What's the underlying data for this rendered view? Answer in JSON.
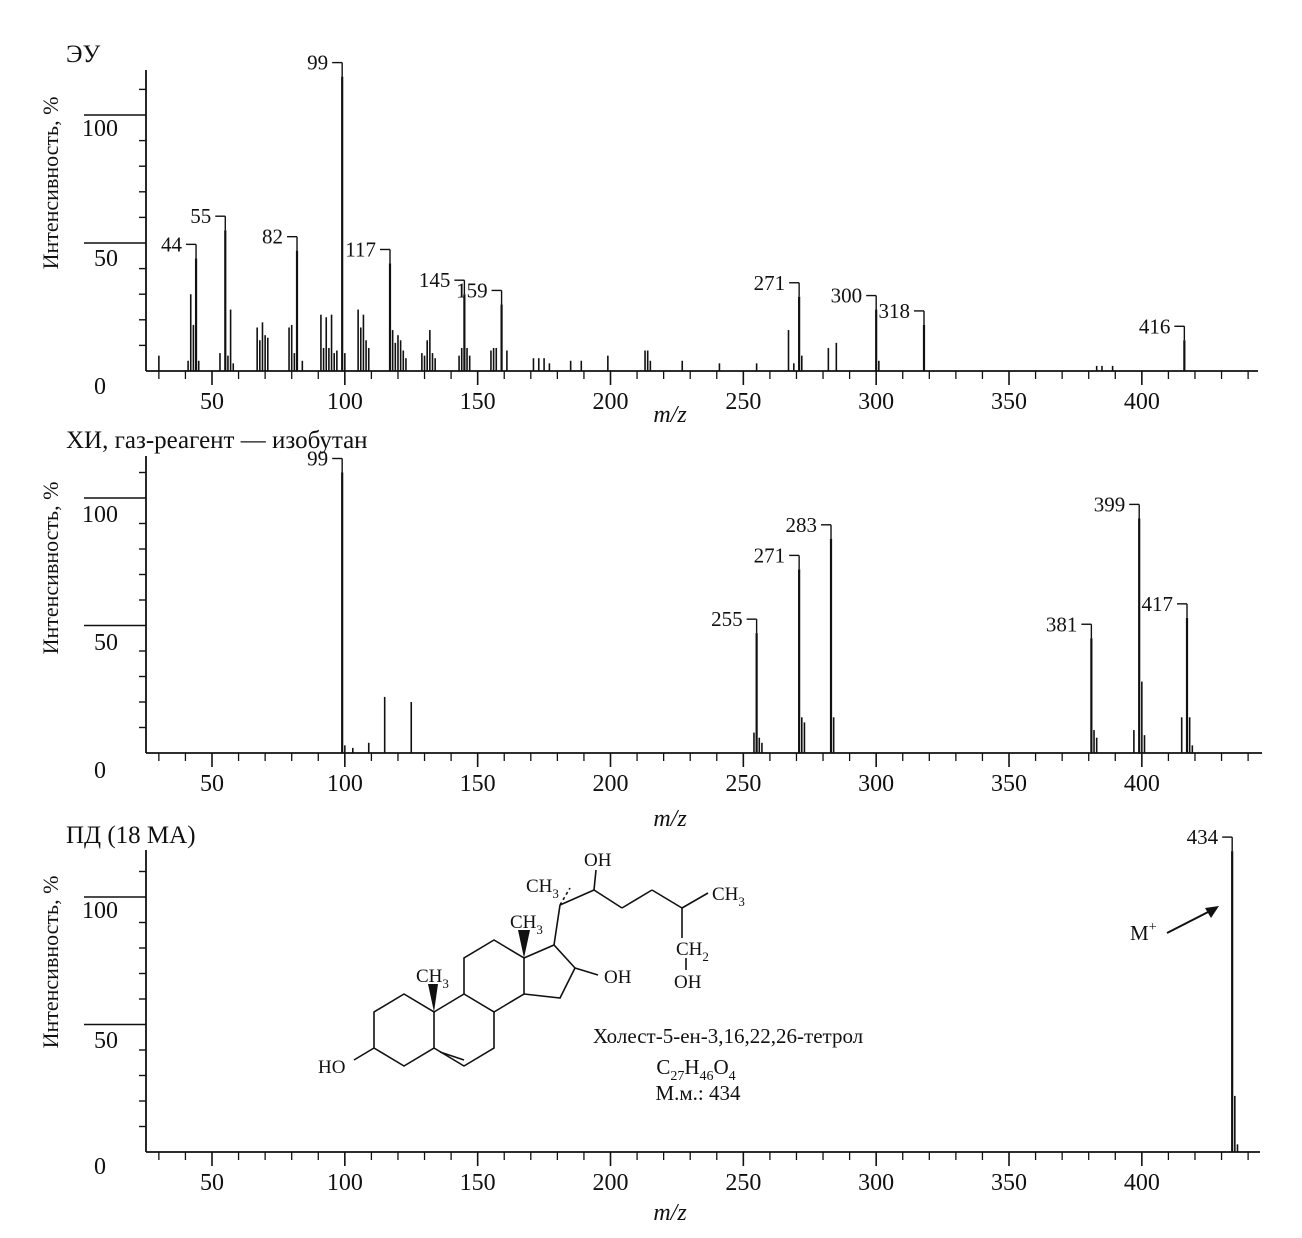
{
  "chart_data": [
    {
      "type": "bar",
      "title": "ЭУ",
      "xlabel": "m/z",
      "ylabel": "Интенсивность, %",
      "xlim": [
        25,
        440
      ],
      "ylim": [
        0,
        120
      ],
      "xticks": [
        "50",
        "100",
        "150",
        "200",
        "250",
        "300",
        "350",
        "400"
      ],
      "yticks": [
        "0",
        "50",
        "100"
      ],
      "peaks": [
        {
          "x": 30,
          "y": 6
        },
        {
          "x": 41,
          "y": 4
        },
        {
          "x": 42,
          "y": 30
        },
        {
          "x": 43,
          "y": 18
        },
        {
          "x": 44,
          "y": 44,
          "label": "44"
        },
        {
          "x": 45,
          "y": 4
        },
        {
          "x": 53,
          "y": 7
        },
        {
          "x": 55,
          "y": 55,
          "label": "55"
        },
        {
          "x": 56,
          "y": 6
        },
        {
          "x": 57,
          "y": 24
        },
        {
          "x": 58,
          "y": 3
        },
        {
          "x": 67,
          "y": 17
        },
        {
          "x": 68,
          "y": 12
        },
        {
          "x": 69,
          "y": 19
        },
        {
          "x": 70,
          "y": 14
        },
        {
          "x": 71,
          "y": 13
        },
        {
          "x": 79,
          "y": 17
        },
        {
          "x": 80,
          "y": 18
        },
        {
          "x": 81,
          "y": 7
        },
        {
          "x": 82,
          "y": 47,
          "label": "82"
        },
        {
          "x": 84,
          "y": 4
        },
        {
          "x": 91,
          "y": 22
        },
        {
          "x": 92,
          "y": 9
        },
        {
          "x": 93,
          "y": 21
        },
        {
          "x": 94,
          "y": 9
        },
        {
          "x": 95,
          "y": 22
        },
        {
          "x": 96,
          "y": 7
        },
        {
          "x": 97,
          "y": 8
        },
        {
          "x": 99,
          "y": 115,
          "label": "99"
        },
        {
          "x": 100,
          "y": 7
        },
        {
          "x": 105,
          "y": 24
        },
        {
          "x": 106,
          "y": 17
        },
        {
          "x": 107,
          "y": 22
        },
        {
          "x": 108,
          "y": 12
        },
        {
          "x": 109,
          "y": 9
        },
        {
          "x": 117,
          "y": 42,
          "label": "117"
        },
        {
          "x": 118,
          "y": 16
        },
        {
          "x": 119,
          "y": 11
        },
        {
          "x": 120,
          "y": 14
        },
        {
          "x": 121,
          "y": 12
        },
        {
          "x": 122,
          "y": 8
        },
        {
          "x": 123,
          "y": 5
        },
        {
          "x": 129,
          "y": 7
        },
        {
          "x": 130,
          "y": 6
        },
        {
          "x": 131,
          "y": 12
        },
        {
          "x": 132,
          "y": 16
        },
        {
          "x": 133,
          "y": 7
        },
        {
          "x": 134,
          "y": 5
        },
        {
          "x": 143,
          "y": 6
        },
        {
          "x": 144,
          "y": 9
        },
        {
          "x": 145,
          "y": 30,
          "label": "145"
        },
        {
          "x": 146,
          "y": 9
        },
        {
          "x": 147,
          "y": 6
        },
        {
          "x": 155,
          "y": 8
        },
        {
          "x": 156,
          "y": 9
        },
        {
          "x": 157,
          "y": 9
        },
        {
          "x": 159,
          "y": 26,
          "label": "159"
        },
        {
          "x": 161,
          "y": 8
        },
        {
          "x": 171,
          "y": 5
        },
        {
          "x": 173,
          "y": 5
        },
        {
          "x": 175,
          "y": 5
        },
        {
          "x": 177,
          "y": 3
        },
        {
          "x": 185,
          "y": 4
        },
        {
          "x": 189,
          "y": 4
        },
        {
          "x": 199,
          "y": 6
        },
        {
          "x": 213,
          "y": 8
        },
        {
          "x": 214,
          "y": 8
        },
        {
          "x": 215,
          "y": 4
        },
        {
          "x": 227,
          "y": 4
        },
        {
          "x": 241,
          "y": 3
        },
        {
          "x": 255,
          "y": 3
        },
        {
          "x": 267,
          "y": 16
        },
        {
          "x": 269,
          "y": 3
        },
        {
          "x": 271,
          "y": 29,
          "label": "271"
        },
        {
          "x": 272,
          "y": 6
        },
        {
          "x": 282,
          "y": 9
        },
        {
          "x": 285,
          "y": 11
        },
        {
          "x": 300,
          "y": 24,
          "label": "300"
        },
        {
          "x": 301,
          "y": 4
        },
        {
          "x": 318,
          "y": 18,
          "label": "318"
        },
        {
          "x": 383,
          "y": 2
        },
        {
          "x": 385,
          "y": 2
        },
        {
          "x": 389,
          "y": 2
        },
        {
          "x": 416,
          "y": 12,
          "label": "416"
        }
      ]
    },
    {
      "type": "bar",
      "title": "ХИ, газ-реагент — изобутан",
      "xlabel": "m/z",
      "ylabel": "Интенсивность, %",
      "xlim": [
        25,
        440
      ],
      "ylim": [
        0,
        120
      ],
      "xticks": [
        "50",
        "100",
        "150",
        "200",
        "250",
        "300",
        "350",
        "400"
      ],
      "yticks": [
        "0",
        "50",
        "100"
      ],
      "peaks": [
        {
          "x": 99,
          "y": 110,
          "label": "99"
        },
        {
          "x": 100,
          "y": 3
        },
        {
          "x": 103,
          "y": 2
        },
        {
          "x": 109,
          "y": 4
        },
        {
          "x": 115,
          "y": 22
        },
        {
          "x": 125,
          "y": 20
        },
        {
          "x": 254,
          "y": 8
        },
        {
          "x": 255,
          "y": 47,
          "label": "255"
        },
        {
          "x": 256,
          "y": 6
        },
        {
          "x": 257,
          "y": 4
        },
        {
          "x": 271,
          "y": 72,
          "label": "271"
        },
        {
          "x": 272,
          "y": 14
        },
        {
          "x": 273,
          "y": 12
        },
        {
          "x": 283,
          "y": 84,
          "label": "283"
        },
        {
          "x": 284,
          "y": 14
        },
        {
          "x": 381,
          "y": 45,
          "label": "381"
        },
        {
          "x": 382,
          "y": 9
        },
        {
          "x": 383,
          "y": 6
        },
        {
          "x": 397,
          "y": 9
        },
        {
          "x": 399,
          "y": 92,
          "label": "399"
        },
        {
          "x": 400,
          "y": 28
        },
        {
          "x": 401,
          "y": 7
        },
        {
          "x": 415,
          "y": 14
        },
        {
          "x": 417,
          "y": 53,
          "label": "417"
        },
        {
          "x": 418,
          "y": 14
        },
        {
          "x": 419,
          "y": 3
        }
      ]
    },
    {
      "type": "bar",
      "title": "ПД (18 МА)",
      "xlabel": "m/z",
      "ylabel": "Интенсивность, %",
      "xlim": [
        25,
        440
      ],
      "ylim": [
        0,
        120
      ],
      "xticks": [
        "50",
        "100",
        "150",
        "200",
        "250",
        "300",
        "350",
        "400"
      ],
      "yticks": [
        "0",
        "50",
        "100"
      ],
      "peaks": [
        {
          "x": 434,
          "y": 118,
          "label": "434"
        },
        {
          "x": 435,
          "y": 22
        },
        {
          "x": 436,
          "y": 3
        }
      ],
      "annotations": {
        "molecular_ion": "M",
        "molecular_ion_sup": "+",
        "compound_name": "Холест-5-ен-3,16,22,26-тетрол",
        "formula": {
          "c": "C",
          "c_n": "27",
          "h": "H",
          "h_n": "46",
          "o": "O",
          "o_n": "4"
        },
        "mass": "М.м.: 434",
        "structure_groups": {
          "oh_top": "OH",
          "ch3_side": "CH",
          "ch3_side_sub": "3",
          "ch3_end": "CH",
          "ch3_end_sub": "3",
          "ch3_c13": "CH",
          "ch3_c13_sub": "3",
          "ch3_c10": "CH",
          "ch3_c10_sub": "3",
          "ch2": "CH",
          "ch2_sub": "2",
          "oh_ch2": "OH",
          "oh_ring": "OH",
          "ho_3": "HO"
        }
      }
    }
  ]
}
